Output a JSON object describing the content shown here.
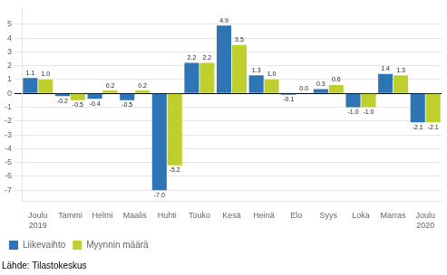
{
  "chart_data": {
    "type": "bar",
    "categories": [
      "Joulu\n2019",
      "Tammi",
      "Helmi",
      "Maalis",
      "Huhti",
      "Touko",
      "Kesä",
      "Heinä",
      "Elo",
      "Syys",
      "Loka",
      "Marras",
      "Joulu\n2020"
    ],
    "series": [
      {
        "name": "Liikevaihto",
        "color": "#2E75B6",
        "values": [
          1.1,
          -0.2,
          -0.4,
          -0.5,
          -7.0,
          2.2,
          4.9,
          1.3,
          -0.1,
          0.3,
          -1.0,
          1.4,
          -2.1
        ],
        "value_labels": [
          "1.1",
          "-0.2",
          "-0.4",
          "-0.5",
          "-7.0",
          "2.2",
          "4.9",
          "1.3",
          "-0.1",
          "0.3",
          "-1.0",
          "1.4",
          "-2.1"
        ]
      },
      {
        "name": "Myynnin määrä",
        "color": "#BFCF2E",
        "values": [
          1.0,
          -0.5,
          0.2,
          0.2,
          -5.2,
          2.2,
          3.5,
          1.0,
          0.0,
          0.6,
          -1.0,
          1.3,
          -2.1
        ],
        "value_labels": [
          "1.0",
          "-0.5",
          "0.2",
          "0.2",
          "-5.2",
          "2.2",
          "3.5",
          "1.0",
          "0.0",
          "0.6",
          "-1.0",
          "1.3",
          "-2.1"
        ]
      }
    ],
    "ylim": [
      -7.8,
      6.2
    ],
    "yticks": [
      -7,
      -6,
      -5,
      -4,
      -3,
      -2,
      -1,
      0,
      1,
      2,
      3,
      4,
      5
    ],
    "grid": true,
    "legend": "lower left",
    "data_labels": true,
    "annotations": [
      "Lähde: Tilastokeskus"
    ]
  }
}
